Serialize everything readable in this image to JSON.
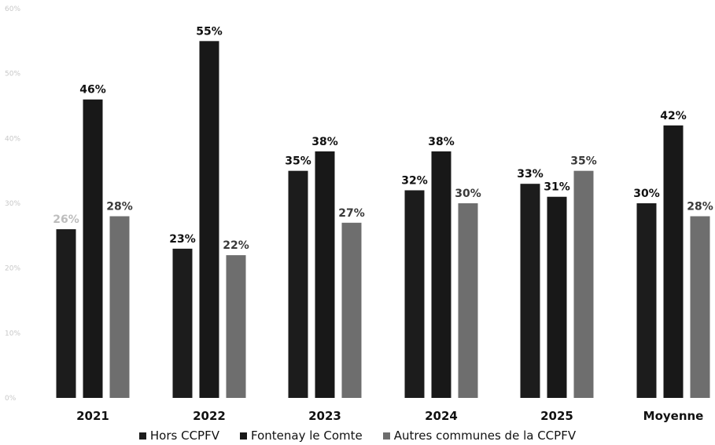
{
  "chart_data": {
    "type": "bar",
    "categories": [
      "2021",
      "2022",
      "2023",
      "2024",
      "2025",
      "Moyenne"
    ],
    "series": [
      {
        "name": "Hors CCPFV",
        "values": [
          26,
          23,
          35,
          32,
          33,
          30
        ],
        "labels": [
          "26%",
          "23%",
          "35%",
          "32%",
          "33%",
          "30%"
        ],
        "color": "#1c1c1c"
      },
      {
        "name": "Fontenay le Comte",
        "values": [
          46,
          55,
          38,
          38,
          31,
          42
        ],
        "labels": [
          "46%",
          "55%",
          "38%",
          "38%",
          "31%",
          "42%"
        ],
        "color": "#181818"
      },
      {
        "name": "Autres communes de la CCPFV",
        "values": [
          28,
          22,
          27,
          30,
          35,
          28
        ],
        "labels": [
          "28%",
          "22%",
          "27%",
          "30%",
          "35%",
          "28%"
        ],
        "color": "#6e6e6e"
      }
    ],
    "y_ticks": [
      "60%",
      "50%",
      "40%",
      "30%",
      "20%",
      "10%",
      "0%"
    ],
    "ylim": [
      0,
      60
    ],
    "grid": false,
    "legend_position": "bottom"
  }
}
